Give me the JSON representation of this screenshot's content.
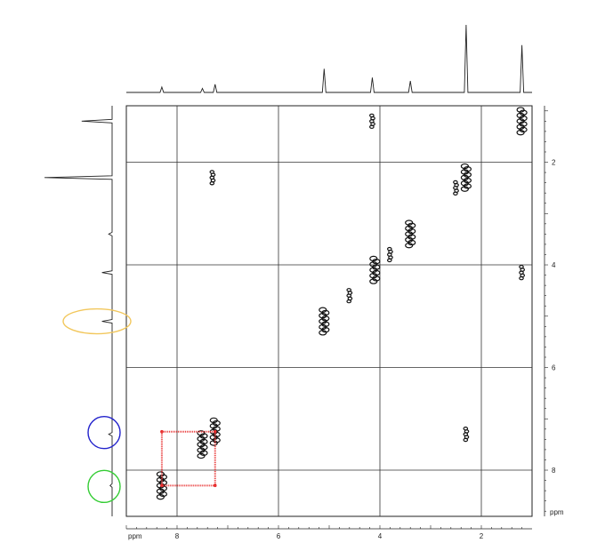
{
  "chart_data": {
    "type": "scatter",
    "title": "",
    "xlabel": "ppm",
    "ylabel": "ppm",
    "x_axis": {
      "range": [
        9.0,
        1.0
      ],
      "ticks": [
        8,
        6,
        4,
        2
      ],
      "unit_label": "ppm",
      "reversed": true
    },
    "y_axis": {
      "range": [
        0.9,
        8.9
      ],
      "ticks": [
        2,
        4,
        6,
        8
      ],
      "unit_label": "ppm",
      "reversed": true
    },
    "grid": true,
    "diagonal_peaks": [
      {
        "x": 8.3,
        "y": 8.3
      },
      {
        "x": 7.5,
        "y": 7.5
      },
      {
        "x": 7.25,
        "y": 7.25
      },
      {
        "x": 5.1,
        "y": 5.1
      },
      {
        "x": 4.1,
        "y": 4.1
      },
      {
        "x": 3.4,
        "y": 3.4
      },
      {
        "x": 2.3,
        "y": 2.3
      },
      {
        "x": 1.2,
        "y": 1.2
      }
    ],
    "cross_peaks": [
      {
        "x": 4.15,
        "y": 1.2
      },
      {
        "x": 1.2,
        "y": 4.15
      },
      {
        "x": 7.3,
        "y": 2.3
      },
      {
        "x": 2.3,
        "y": 7.3
      },
      {
        "x": 4.6,
        "y": 4.6
      },
      {
        "x": 3.8,
        "y": 3.8
      },
      {
        "x": 2.5,
        "y": 2.5
      }
    ],
    "f2_projection_peaks": [
      {
        "ppm": 8.3,
        "height": 0.08
      },
      {
        "ppm": 7.5,
        "height": 0.06
      },
      {
        "ppm": 7.25,
        "height": 0.12
      },
      {
        "ppm": 5.1,
        "height": 0.35
      },
      {
        "ppm": 4.15,
        "height": 0.22
      },
      {
        "ppm": 3.4,
        "height": 0.17
      },
      {
        "ppm": 2.3,
        "height": 1.0
      },
      {
        "ppm": 1.2,
        "height": 0.7
      }
    ],
    "f1_projection_peaks": [
      {
        "ppm": 1.2,
        "height": 0.45
      },
      {
        "ppm": 2.3,
        "height": 1.0
      },
      {
        "ppm": 3.4,
        "height": 0.05
      },
      {
        "ppm": 4.15,
        "height": 0.15
      },
      {
        "ppm": 5.1,
        "height": 0.15
      },
      {
        "ppm": 7.3,
        "height": 0.05
      },
      {
        "ppm": 8.3,
        "height": 0.03
      }
    ],
    "annotations": [
      {
        "shape": "ellipse",
        "color": "#f2c75c",
        "around_ppm": 5.1,
        "on": "f1_projection"
      },
      {
        "shape": "circle",
        "color": "#2222cc",
        "around_ppm": 7.25,
        "on": "f1_projection"
      },
      {
        "shape": "circle",
        "color": "#33cc33",
        "around_ppm": 8.3,
        "on": "f1_projection"
      },
      {
        "shape": "square",
        "color": "#e83030",
        "x_range": [
          8.3,
          7.25
        ],
        "y_range": [
          7.25,
          8.3
        ]
      }
    ]
  }
}
